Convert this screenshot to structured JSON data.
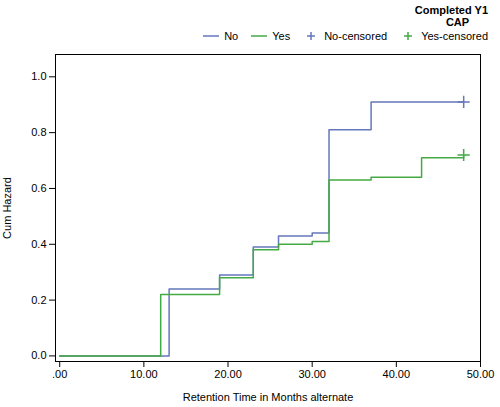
{
  "chart_data": {
    "type": "step",
    "xlabel": "Retention Time in Months alternate",
    "ylabel": "Cum Hazard",
    "xlim": [
      -0.5,
      50
    ],
    "ylim": [
      -0.02,
      1.08
    ],
    "xticks": [
      {
        "value": 0,
        "label": ".00"
      },
      {
        "value": 10,
        "label": "10.00"
      },
      {
        "value": 20,
        "label": "20.00"
      },
      {
        "value": 30,
        "label": "30.00"
      },
      {
        "value": 40,
        "label": "40.00"
      },
      {
        "value": 50,
        "label": "50.00"
      }
    ],
    "yticks": [
      {
        "value": 0,
        "label": "0.0"
      },
      0.2,
      0.4,
      0.6,
      0.8,
      {
        "value": 1,
        "label": "1.0"
      }
    ],
    "grid": false,
    "legend": "top",
    "legend_title": "Completed Y1\n    CAP",
    "series": [
      {
        "name": "No",
        "type": "step",
        "color": "#6677bb",
        "x": [
          0,
          13,
          13,
          19,
          19,
          23,
          23,
          26,
          26,
          30,
          30,
          32,
          32,
          37,
          37,
          43,
          43,
          48,
          48
        ],
        "values": [
          0.0,
          0.0,
          0.24,
          0.24,
          0.29,
          0.29,
          0.39,
          0.39,
          0.43,
          0.43,
          0.44,
          0.44,
          0.81,
          0.81,
          0.91,
          0.91,
          0.91,
          0.91,
          0.91
        ]
      },
      {
        "name": "Yes",
        "type": "step",
        "color": "#44aa44",
        "x": [
          0,
          12,
          12,
          19,
          19,
          23,
          23,
          26,
          26,
          30,
          30,
          32,
          32,
          37,
          37,
          43,
          43,
          48,
          48
        ],
        "values": [
          0.0,
          0.0,
          0.22,
          0.22,
          0.28,
          0.28,
          0.38,
          0.38,
          0.4,
          0.4,
          0.41,
          0.41,
          0.63,
          0.63,
          0.64,
          0.64,
          0.71,
          0.71,
          0.72
        ]
      },
      {
        "name": "No-censored",
        "type": "scatter",
        "marker": "+",
        "color": "#6677bb",
        "x": [
          48
        ],
        "values": [
          0.91
        ]
      },
      {
        "name": "Yes-censored",
        "type": "scatter",
        "marker": "+",
        "color": "#44aa44",
        "x": [
          48
        ],
        "values": [
          0.72
        ]
      }
    ]
  }
}
